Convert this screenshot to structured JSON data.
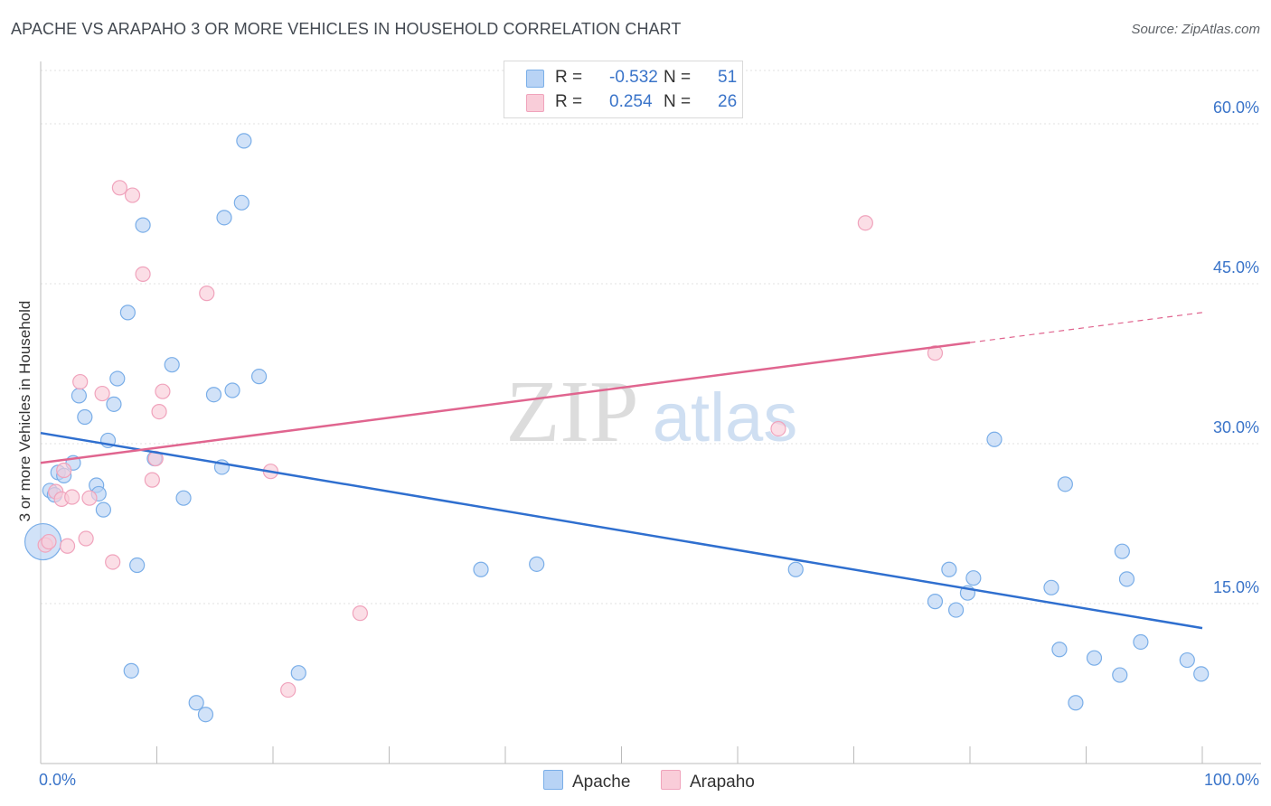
{
  "chart_data": {
    "type": "scatter",
    "title": "APACHE VS ARAPAHO 3 OR MORE VEHICLES IN HOUSEHOLD CORRELATION CHART",
    "source": "Source: ZipAtlas.com",
    "ylabel": "3 or more Vehicles in Household",
    "xlim": [
      0,
      100
    ],
    "ylim": [
      0,
      65
    ],
    "x_tick_labels": [
      "0.0%",
      "100.0%"
    ],
    "y_ticks": [
      15,
      30,
      45,
      60
    ],
    "y_tick_labels": [
      "15.0%",
      "30.0%",
      "45.0%",
      "60.0%"
    ],
    "watermark": {
      "zip": "ZIP",
      "atlas": "atlas"
    },
    "legend": [
      {
        "name": "Apache",
        "r_label": "R =",
        "r_value": "-0.532",
        "n_label": "N =",
        "n_value": "51"
      },
      {
        "name": "Arapaho",
        "r_label": "R =",
        "r_value": "0.254",
        "n_label": "N =",
        "n_value": "26"
      }
    ],
    "series": [
      {
        "name": "Apache",
        "color": "#7aaee8",
        "fill": "#b8d3f5",
        "line_color": "#2f6fcf",
        "trend": {
          "x0": 0,
          "y0": 31.0,
          "x1": 100,
          "y1": 12.7
        },
        "points": [
          [
            0.2,
            20.8
          ],
          [
            0.8,
            25.6
          ],
          [
            1.2,
            25.2
          ],
          [
            1.5,
            27.3
          ],
          [
            2.0,
            27.0
          ],
          [
            2.8,
            28.2
          ],
          [
            3.3,
            34.5
          ],
          [
            3.8,
            32.5
          ],
          [
            4.8,
            26.1
          ],
          [
            5.0,
            25.3
          ],
          [
            5.4,
            23.8
          ],
          [
            5.8,
            30.3
          ],
          [
            6.3,
            33.7
          ],
          [
            6.6,
            36.1
          ],
          [
            7.5,
            42.3
          ],
          [
            7.8,
            8.7
          ],
          [
            8.3,
            18.6
          ],
          [
            8.8,
            50.5
          ],
          [
            9.8,
            28.6
          ],
          [
            11.3,
            37.4
          ],
          [
            12.3,
            24.9
          ],
          [
            13.4,
            5.7
          ],
          [
            14.2,
            4.6
          ],
          [
            14.9,
            34.6
          ],
          [
            15.6,
            27.8
          ],
          [
            15.8,
            51.2
          ],
          [
            16.5,
            35.0
          ],
          [
            17.3,
            52.6
          ],
          [
            17.5,
            58.4
          ],
          [
            18.8,
            36.3
          ],
          [
            22.2,
            8.5
          ],
          [
            37.9,
            18.2
          ],
          [
            42.7,
            18.7
          ],
          [
            65.0,
            18.2
          ],
          [
            77.0,
            15.2
          ],
          [
            78.2,
            18.2
          ],
          [
            78.8,
            14.4
          ],
          [
            79.8,
            16.0
          ],
          [
            80.3,
            17.4
          ],
          [
            82.1,
            30.4
          ],
          [
            87.0,
            16.5
          ],
          [
            87.7,
            10.7
          ],
          [
            88.2,
            26.2
          ],
          [
            89.1,
            5.7
          ],
          [
            90.7,
            9.9
          ],
          [
            92.9,
            8.3
          ],
          [
            93.1,
            19.9
          ],
          [
            93.5,
            17.3
          ],
          [
            94.7,
            11.4
          ],
          [
            98.7,
            9.7
          ],
          [
            99.9,
            8.4
          ]
        ]
      },
      {
        "name": "Arapaho",
        "color": "#f0a3bc",
        "fill": "#f9cdd9",
        "line_color": "#e0658f",
        "trend": {
          "x0": 0,
          "y0": 28.2,
          "x1": 100,
          "y1": 42.3,
          "solid_until": 80
        },
        "points": [
          [
            0.4,
            20.5
          ],
          [
            0.7,
            20.8
          ],
          [
            1.3,
            25.5
          ],
          [
            1.8,
            24.8
          ],
          [
            2.0,
            27.5
          ],
          [
            2.3,
            20.4
          ],
          [
            2.7,
            25.0
          ],
          [
            3.4,
            35.8
          ],
          [
            3.9,
            21.1
          ],
          [
            4.2,
            24.9
          ],
          [
            5.3,
            34.7
          ],
          [
            6.2,
            18.9
          ],
          [
            6.8,
            54.0
          ],
          [
            7.9,
            53.3
          ],
          [
            8.8,
            45.9
          ],
          [
            9.6,
            26.6
          ],
          [
            9.9,
            28.6
          ],
          [
            10.2,
            33.0
          ],
          [
            10.5,
            34.9
          ],
          [
            14.3,
            44.1
          ],
          [
            19.8,
            27.4
          ],
          [
            21.3,
            6.9
          ],
          [
            27.5,
            14.1
          ],
          [
            63.5,
            31.4
          ],
          [
            71.0,
            50.7
          ],
          [
            77.0,
            38.5
          ]
        ]
      }
    ]
  }
}
